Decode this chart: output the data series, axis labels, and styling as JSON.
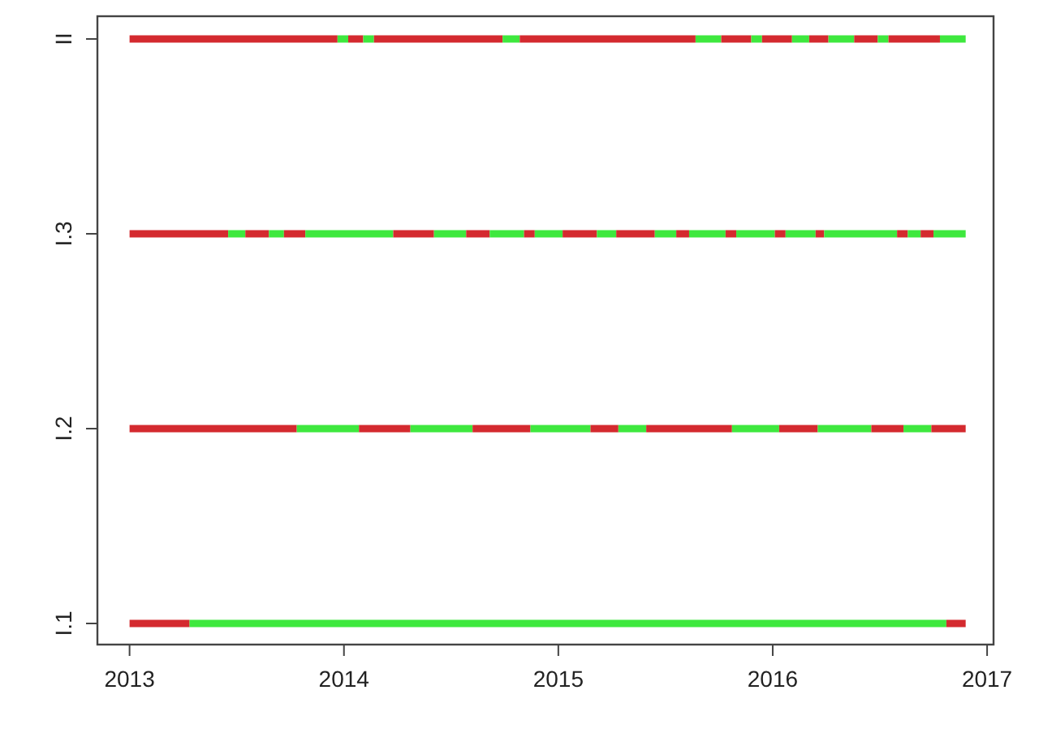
{
  "chart_data": {
    "type": "bar",
    "orientation": "horizontal",
    "categories": [
      "II",
      "I.3",
      "I.2",
      "I.1"
    ],
    "xlim": [
      2012.85,
      2017.03
    ],
    "xticks": [
      2013,
      2014,
      2015,
      2016,
      2017
    ],
    "series": [
      {
        "color": "#d42a2f",
        "base": [
          2013,
          2013,
          2013,
          2013
        ],
        "values": [
          0.97,
          0.46,
          0.78,
          0.28
        ]
      },
      {
        "color": "#3ee83e",
        "base": [
          2013.97,
          2013.46,
          2013.78,
          2013.28
        ],
        "values": [
          0.05,
          0.08,
          0.29,
          3.53
        ]
      },
      {
        "color": "#d42a2f",
        "base": [
          2014.02,
          2013.54,
          2014.07,
          2016.81
        ],
        "values": [
          0.07,
          0.11,
          0.24,
          0.09
        ]
      },
      {
        "color": "#3ee83e",
        "base": [
          2014.09,
          2013.65,
          2014.31,
          null
        ],
        "values": [
          0.05,
          0.07,
          0.29,
          null
        ]
      },
      {
        "color": "#d42a2f",
        "base": [
          2014.14,
          2013.72,
          2014.6,
          null
        ],
        "values": [
          0.6,
          0.1,
          0.27,
          null
        ]
      },
      {
        "color": "#3ee83e",
        "base": [
          2014.74,
          2013.82,
          2014.87,
          null
        ],
        "values": [
          0.08,
          0.41,
          0.28,
          null
        ]
      },
      {
        "color": "#d42a2f",
        "base": [
          2014.82,
          2014.23,
          2015.15,
          null
        ],
        "values": [
          0.82,
          0.19,
          0.13,
          null
        ]
      },
      {
        "color": "#3ee83e",
        "base": [
          2015.64,
          2014.42,
          2015.28,
          null
        ],
        "values": [
          0.12,
          0.15,
          0.13,
          null
        ]
      },
      {
        "color": "#d42a2f",
        "base": [
          2015.76,
          2014.57,
          2015.41,
          null
        ],
        "values": [
          0.14,
          0.11,
          0.4,
          null
        ]
      },
      {
        "color": "#3ee83e",
        "base": [
          2015.9,
          2014.68,
          2015.81,
          null
        ],
        "values": [
          0.05,
          0.16,
          0.22,
          null
        ]
      },
      {
        "color": "#d42a2f",
        "base": [
          2015.95,
          2014.84,
          2016.03,
          null
        ],
        "values": [
          0.14,
          0.05,
          0.18,
          null
        ]
      },
      {
        "color": "#3ee83e",
        "base": [
          2016.09,
          2014.89,
          2016.21,
          null
        ],
        "values": [
          0.08,
          0.13,
          0.25,
          null
        ]
      },
      {
        "color": "#d42a2f",
        "base": [
          2016.17,
          2015.02,
          2016.46,
          null
        ],
        "values": [
          0.09,
          0.16,
          0.15,
          null
        ]
      },
      {
        "color": "#3ee83e",
        "base": [
          2016.26,
          2015.18,
          2016.61,
          null
        ],
        "values": [
          0.12,
          0.09,
          0.13,
          null
        ]
      },
      {
        "color": "#d42a2f",
        "base": [
          2016.38,
          2015.27,
          2016.74,
          null
        ],
        "values": [
          0.11,
          0.18,
          0.16,
          null
        ]
      },
      {
        "color": "#3ee83e",
        "base": [
          2016.49,
          2015.45,
          null,
          null
        ],
        "values": [
          0.05,
          0.1,
          null,
          null
        ]
      },
      {
        "color": "#d42a2f",
        "base": [
          2016.54,
          2015.55,
          null,
          null
        ],
        "values": [
          0.24,
          0.06,
          null,
          null
        ]
      },
      {
        "color": "#3ee83e",
        "base": [
          2016.78,
          2015.61,
          null,
          null
        ],
        "values": [
          0.12,
          0.17,
          null,
          null
        ]
      },
      {
        "color": "#d42a2f",
        "base": [
          null,
          2015.78,
          null,
          null
        ],
        "values": [
          null,
          0.05,
          null,
          null
        ]
      },
      {
        "color": "#3ee83e",
        "base": [
          null,
          2015.83,
          null,
          null
        ],
        "values": [
          null,
          0.18,
          null,
          null
        ]
      },
      {
        "color": "#d42a2f",
        "base": [
          null,
          2016.01,
          null,
          null
        ],
        "values": [
          null,
          0.05,
          null,
          null
        ]
      },
      {
        "color": "#3ee83e",
        "base": [
          null,
          2016.06,
          null,
          null
        ],
        "values": [
          null,
          0.14,
          null,
          null
        ]
      },
      {
        "color": "#d42a2f",
        "base": [
          null,
          2016.2,
          null,
          null
        ],
        "values": [
          null,
          0.04,
          null,
          null
        ]
      },
      {
        "color": "#3ee83e",
        "base": [
          null,
          2016.24,
          null,
          null
        ],
        "values": [
          null,
          0.34,
          null,
          null
        ]
      },
      {
        "color": "#d42a2f",
        "base": [
          null,
          2016.58,
          null,
          null
        ],
        "values": [
          null,
          0.05,
          null,
          null
        ]
      },
      {
        "color": "#3ee83e",
        "base": [
          null,
          2016.63,
          null,
          null
        ],
        "values": [
          null,
          0.06,
          null,
          null
        ]
      },
      {
        "color": "#d42a2f",
        "base": [
          null,
          2016.69,
          null,
          null
        ],
        "values": [
          null,
          0.06,
          null,
          null
        ]
      },
      {
        "color": "#3ee83e",
        "base": [
          null,
          2016.75,
          null,
          null
        ],
        "values": [
          null,
          0.15,
          null,
          null
        ]
      }
    ]
  }
}
